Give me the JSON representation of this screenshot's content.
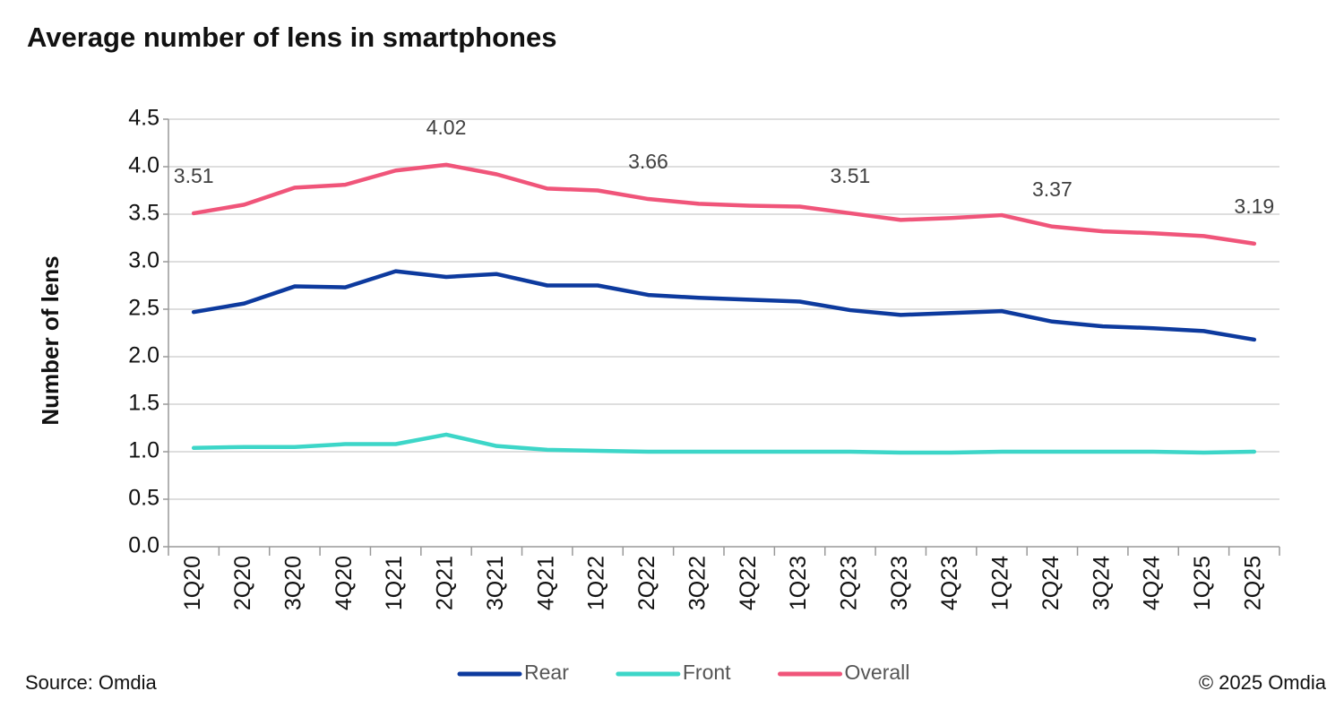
{
  "chart_data": {
    "type": "line",
    "title": "Average number of lens in smartphones",
    "y_label": "Number of lens",
    "source": "Source: Omdia",
    "copyright": "© 2025 Omdia",
    "categories": [
      "1Q20",
      "2Q20",
      "3Q20",
      "4Q20",
      "1Q21",
      "2Q21",
      "3Q21",
      "4Q21",
      "1Q22",
      "2Q22",
      "3Q22",
      "4Q22",
      "1Q23",
      "2Q23",
      "3Q23",
      "4Q23",
      "1Q24",
      "2Q24",
      "3Q24",
      "4Q24",
      "1Q25",
      "2Q25"
    ],
    "series": [
      {
        "name": "Rear",
        "color": "#0d3a9e",
        "values": [
          2.47,
          2.56,
          2.74,
          2.73,
          2.9,
          2.84,
          2.87,
          2.75,
          2.75,
          2.65,
          2.62,
          2.6,
          2.58,
          2.49,
          2.44,
          2.46,
          2.48,
          2.37,
          2.32,
          2.3,
          2.27,
          2.18
        ]
      },
      {
        "name": "Front",
        "color": "#3dd6c8",
        "values": [
          1.04,
          1.05,
          1.05,
          1.08,
          1.08,
          1.18,
          1.06,
          1.02,
          1.01,
          1.0,
          1.0,
          1.0,
          1.0,
          1.0,
          0.99,
          0.99,
          1.0,
          1.0,
          1.0,
          1.0,
          0.99,
          1.0
        ]
      },
      {
        "name": "Overall",
        "color": "#f0557a",
        "values": [
          3.51,
          3.6,
          3.78,
          3.81,
          3.96,
          4.02,
          3.92,
          3.77,
          3.75,
          3.66,
          3.61,
          3.59,
          3.58,
          3.51,
          3.44,
          3.46,
          3.49,
          3.37,
          3.32,
          3.3,
          3.27,
          3.19
        ],
        "value_labels": [
          "3.51",
          null,
          null,
          null,
          null,
          "4.02",
          null,
          null,
          null,
          "3.66",
          null,
          null,
          null,
          "3.51",
          null,
          null,
          null,
          "3.37",
          null,
          null,
          null,
          "3.19"
        ]
      }
    ],
    "ylim": [
      0,
      4.5
    ],
    "yticks": [
      {
        "value": 0,
        "label": "0.0"
      },
      {
        "value": 0.5,
        "label": "0.5"
      },
      {
        "value": 1,
        "label": "1.0"
      },
      {
        "value": 1.5,
        "label": "1.5"
      },
      {
        "value": 2,
        "label": "2.0"
      },
      {
        "value": 2.5,
        "label": "2.5"
      },
      {
        "value": 3,
        "label": "3.0"
      },
      {
        "value": 3.5,
        "label": "3.5"
      },
      {
        "value": 4,
        "label": "4.0"
      },
      {
        "value": 4.5,
        "label": "4.5"
      }
    ],
    "grid": true
  }
}
